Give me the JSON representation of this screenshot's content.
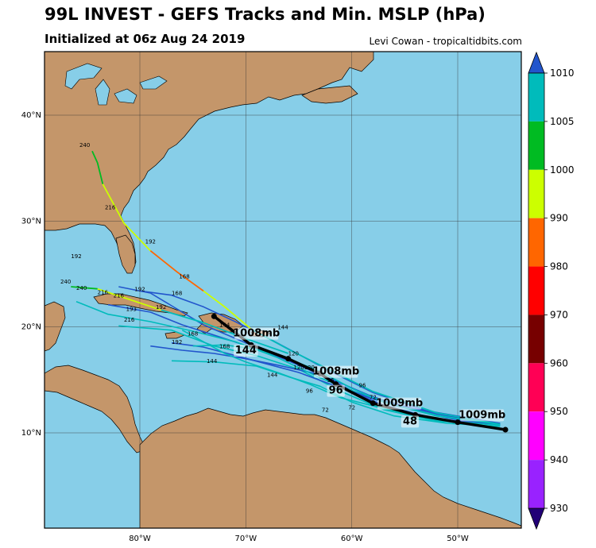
{
  "header": {
    "title": "99L INVEST - GEFS Tracks and Min. MSLP (hPa)",
    "subtitle": "Initialized at 06z Aug 24 2019",
    "credit": "Levi Cowan - tropicaltidbits.com"
  },
  "map": {
    "lon_range": [
      -89,
      -44
    ],
    "lat_range": [
      1,
      46
    ],
    "ocean_color": "#87CEE8",
    "land_color": "#C4966A",
    "grid_lons": [
      -80,
      -70,
      -60,
      -50
    ],
    "grid_lats": [
      10,
      20,
      30,
      40
    ],
    "lon_labels": [
      "80°W",
      "70°W",
      "60°W",
      "50°W"
    ],
    "lat_labels": [
      "10°N",
      "20°N",
      "30°N",
      "40°N"
    ]
  },
  "colorbar": {
    "tick_labels": [
      "1010",
      "1005",
      "1000",
      "990",
      "980",
      "970",
      "960",
      "950",
      "940",
      "930"
    ],
    "colors": [
      "#00BBBB",
      "#00BB22",
      "#CCFF00",
      "#FF6600",
      "#FF0000",
      "#770000",
      "#FF0055",
      "#FF00FF",
      "#9922FF",
      "#3300AA"
    ]
  },
  "mean_track": {
    "points": [
      [
        -45.5,
        10.3
      ],
      [
        -50,
        11.0
      ],
      [
        -54,
        11.7
      ],
      [
        -58,
        12.8
      ],
      [
        -61.5,
        14.6
      ],
      [
        -63,
        15.6
      ],
      [
        -66,
        17.0
      ],
      [
        -69.5,
        18.3
      ],
      [
        -73,
        21.0
      ]
    ],
    "labels": [
      {
        "text": "1009mb",
        "lon": -47.7,
        "lat": 11.4
      },
      {
        "text": "1009mb",
        "lon": -55.5,
        "lat": 12.5
      },
      {
        "text": "48",
        "lon": -54.5,
        "lat": 10.8
      },
      {
        "text": "1008mb",
        "lon": -61.5,
        "lat": 15.5
      },
      {
        "text": "96",
        "lon": -61.5,
        "lat": 13.7
      },
      {
        "text": "1008mb",
        "lon": -69.0,
        "lat": 19.1
      },
      {
        "text": "144",
        "lon": -70.0,
        "lat": 17.5
      }
    ]
  },
  "members": [
    {
      "color": "#2255CC",
      "points": [
        [
          -46,
          10.8
        ],
        [
          -52,
          11.3
        ],
        [
          -57,
          12.6
        ],
        [
          -61,
          14.3
        ],
        [
          -64,
          16.1
        ],
        [
          -68,
          17.6
        ],
        [
          -72,
          18.9
        ],
        [
          -76,
          20.2
        ],
        [
          -79,
          21.4
        ],
        [
          -83,
          22.1
        ]
      ]
    },
    {
      "color": "#00BBBB",
      "points": [
        [
          -46,
          10.8
        ],
        [
          -52,
          11.1
        ],
        [
          -57,
          12.2
        ],
        [
          -61,
          13.9
        ],
        [
          -65,
          16.0
        ],
        [
          -69,
          17.3
        ],
        [
          -73,
          18.2
        ],
        [
          -77,
          19.7
        ],
        [
          -82,
          20.1
        ]
      ]
    },
    {
      "color": "#2255CC",
      "points": [
        [
          -46,
          10.9
        ],
        [
          -52,
          11.6
        ],
        [
          -58,
          13.4
        ],
        [
          -62,
          15.1
        ],
        [
          -66,
          16.8
        ],
        [
          -70,
          18.5
        ],
        [
          -74,
          20.2
        ],
        [
          -77,
          22.0
        ],
        [
          -79,
          23.2
        ],
        [
          -82,
          23.8
        ]
      ]
    },
    {
      "color": "#00BBBB",
      "points": [
        [
          -46,
          10.6
        ],
        [
          -51,
          10.9
        ],
        [
          -56,
          11.6
        ],
        [
          -60,
          12.9
        ],
        [
          -63,
          14.4
        ],
        [
          -66,
          15.3
        ],
        [
          -69,
          16.3
        ],
        [
          -73,
          16.7
        ],
        [
          -77,
          16.8
        ]
      ]
    },
    {
      "color": "#2255CC",
      "points": [
        [
          -46,
          10.7
        ],
        [
          -51,
          11.4
        ],
        [
          -56,
          12.6
        ],
        [
          -60,
          14.0
        ],
        [
          -63,
          15.5
        ],
        [
          -67,
          16.4
        ],
        [
          -70,
          17.0
        ],
        [
          -73,
          17.5
        ],
        [
          -76,
          17.8
        ],
        [
          -79,
          18.2
        ]
      ]
    },
    {
      "color": "#00BBBB",
      "points": [
        [
          -46,
          10.8
        ],
        [
          -53,
          11.9
        ],
        [
          -59,
          13.6
        ],
        [
          -63,
          15.2
        ],
        [
          -67,
          17.1
        ],
        [
          -71,
          18.6
        ],
        [
          -75,
          19.6
        ],
        [
          -79,
          20.5
        ],
        [
          -83,
          21.2
        ],
        [
          -86,
          22.4
        ]
      ]
    },
    {
      "color": "#2255CC",
      "points": [
        [
          -46,
          10.8
        ],
        [
          -52,
          11.8
        ],
        [
          -58,
          13.2
        ],
        [
          -62,
          14.6
        ],
        [
          -65,
          15.7
        ],
        [
          -68,
          16.5
        ],
        [
          -71,
          17.3
        ],
        [
          -74,
          18.1
        ],
        [
          -77,
          18.5
        ]
      ]
    },
    {
      "color": "#00BBBB",
      "points": [
        [
          -46,
          10.7
        ],
        [
          -52,
          11.2
        ],
        [
          -57,
          12.3
        ],
        [
          -61,
          13.3
        ],
        [
          -64,
          14.6
        ],
        [
          -67,
          15.7
        ],
        [
          -70,
          16.7
        ],
        [
          -72,
          17.5
        ],
        [
          -74,
          18.6
        ],
        [
          -76,
          19.7
        ]
      ]
    },
    {
      "color": "#2255CC",
      "points": [
        [
          -46,
          10.9
        ],
        [
          -53,
          12.1
        ],
        [
          -58,
          13.8
        ],
        [
          -62,
          15.8
        ],
        [
          -65,
          17.4
        ],
        [
          -68,
          19.0
        ],
        [
          -71,
          20.5
        ],
        [
          -74,
          21.9
        ],
        [
          -77,
          23.0
        ],
        [
          -80,
          23.4
        ]
      ]
    },
    {
      "color": "#00BBBB",
      "points": [
        [
          -46,
          10.8
        ],
        [
          -52,
          11.6
        ],
        [
          -57,
          12.9
        ],
        [
          -60,
          14.2
        ],
        [
          -63,
          15.8
        ],
        [
          -66,
          17.0
        ],
        [
          -69,
          17.9
        ],
        [
          -72,
          18.3
        ],
        [
          -75,
          18.2
        ]
      ]
    }
  ],
  "long_member": [
    {
      "color": "#00BBBB",
      "points": [
        [
          -46,
          10.8
        ],
        [
          -52,
          11.9
        ],
        [
          -58,
          13.9
        ],
        [
          -62,
          15.9
        ],
        [
          -66,
          17.9
        ],
        [
          -69.5,
          19.8
        ]
      ]
    },
    {
      "color": "#CCFF00",
      "points": [
        [
          -69.5,
          19.8
        ],
        [
          -72,
          21.9
        ],
        [
          -74,
          23.4
        ]
      ]
    },
    {
      "color": "#FF6600",
      "points": [
        [
          -74,
          23.4
        ],
        [
          -76.5,
          25.2
        ],
        [
          -79,
          27.2
        ]
      ]
    },
    {
      "color": "#CCFF00",
      "points": [
        [
          -79,
          27.2
        ],
        [
          -81.5,
          29.8
        ],
        [
          -83.5,
          33.5
        ]
      ]
    },
    {
      "color": "#00BB22",
      "points": [
        [
          -83.5,
          33.5
        ],
        [
          -84,
          35.5
        ],
        [
          -84.5,
          36.6
        ]
      ]
    }
  ],
  "west_member": [
    {
      "color": "#00BBBB",
      "points": [
        [
          -66,
          17.5
        ],
        [
          -70,
          18.9
        ],
        [
          -74,
          20.4
        ],
        [
          -78,
          21.6
        ]
      ]
    },
    {
      "color": "#CCFF00",
      "points": [
        [
          -78,
          21.6
        ],
        [
          -81,
          22.6
        ],
        [
          -84,
          23.6
        ]
      ]
    },
    {
      "color": "#00BB22",
      "points": [
        [
          -84,
          23.6
        ],
        [
          -86.5,
          23.8
        ]
      ]
    }
  ],
  "hour_labels": [
    {
      "text": "240",
      "lon": -85.2,
      "lat": 37.0
    },
    {
      "text": "216",
      "lon": -82.8,
      "lat": 31.1
    },
    {
      "text": "192",
      "lon": -79.0,
      "lat": 27.9
    },
    {
      "text": "168",
      "lon": -75.8,
      "lat": 24.6
    },
    {
      "text": "144",
      "lon": -72.0,
      "lat": 20.0
    },
    {
      "text": "192",
      "lon": -86.0,
      "lat": 26.5
    },
    {
      "text": "240",
      "lon": -87.0,
      "lat": 24.1
    },
    {
      "text": "240",
      "lon": -85.5,
      "lat": 23.5
    },
    {
      "text": "216",
      "lon": -83.5,
      "lat": 23.1
    },
    {
      "text": "216",
      "lon": -82.0,
      "lat": 22.8
    },
    {
      "text": "192",
      "lon": -80.0,
      "lat": 23.4
    },
    {
      "text": "192",
      "lon": -78.0,
      "lat": 21.7
    },
    {
      "text": "168",
      "lon": -76.5,
      "lat": 23.0
    },
    {
      "text": "193",
      "lon": -80.8,
      "lat": 21.5
    },
    {
      "text": "216",
      "lon": -81.0,
      "lat": 20.5
    },
    {
      "text": "168",
      "lon": -75.0,
      "lat": 19.2
    },
    {
      "text": "192",
      "lon": -76.5,
      "lat": 18.4
    },
    {
      "text": "168",
      "lon": -72.0,
      "lat": 18.0
    },
    {
      "text": "144",
      "lon": -73.2,
      "lat": 16.6
    },
    {
      "text": "144",
      "lon": -66.5,
      "lat": 19.8
    },
    {
      "text": "120",
      "lon": -65.0,
      "lat": 16.0
    },
    {
      "text": "120",
      "lon": -64.0,
      "lat": 16.0
    },
    {
      "text": "96",
      "lon": -62.0,
      "lat": 14.8
    },
    {
      "text": "96",
      "lon": -59.0,
      "lat": 14.3
    },
    {
      "text": "72",
      "lon": -58.0,
      "lat": 13.2
    },
    {
      "text": "72",
      "lon": -60.0,
      "lat": 12.2
    },
    {
      "text": "72",
      "lon": -62.5,
      "lat": 12.0
    },
    {
      "text": "120",
      "lon": -65.5,
      "lat": 17.3
    },
    {
      "text": "144",
      "lon": -67.5,
      "lat": 15.3
    },
    {
      "text": "96",
      "lon": -64.0,
      "lat": 13.8
    }
  ]
}
